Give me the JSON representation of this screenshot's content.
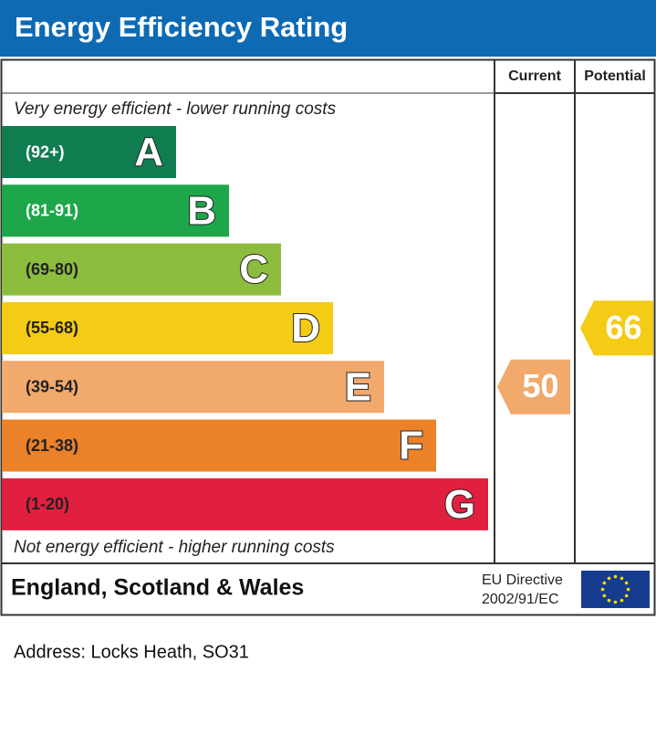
{
  "header": {
    "title": "Energy Efficiency Rating"
  },
  "columns": {
    "current": "Current",
    "potential": "Potential"
  },
  "top_note": "Very energy efficient - lower running costs",
  "bottom_note": "Not energy efficient - higher running costs",
  "bands": [
    {
      "range": "(92+)",
      "letter": "A",
      "color": "#0f7d50"
    },
    {
      "range": "(81-91)",
      "letter": "B",
      "color": "#1ea64b"
    },
    {
      "range": "(69-80)",
      "letter": "C",
      "color": "#8dbd3f"
    },
    {
      "range": "(55-68)",
      "letter": "D",
      "color": "#f4cb15"
    },
    {
      "range": "(39-54)",
      "letter": "E",
      "color": "#f1a96c"
    },
    {
      "range": "(21-38)",
      "letter": "F",
      "color": "#eb8129"
    },
    {
      "range": "(1-20)",
      "letter": "G",
      "color": "#e1203f"
    }
  ],
  "current": {
    "value": 50,
    "color": "#f1a96c"
  },
  "potential": {
    "value": 66,
    "color": "#f4cb15"
  },
  "footer": {
    "region": "England, Scotland & Wales",
    "directive": [
      "EU Directive",
      "2002/91/EC"
    ]
  },
  "address": "Address: Locks Heath, SO31"
}
